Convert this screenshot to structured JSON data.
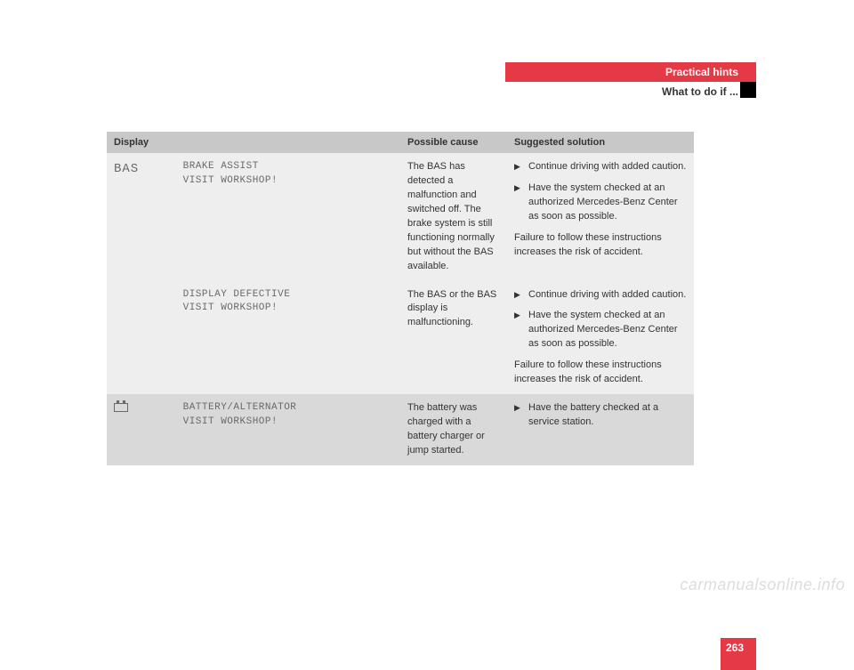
{
  "header": {
    "section_title": "Practical hints",
    "sub_title": "What to do if ..."
  },
  "table": {
    "columns": [
      "Display",
      "",
      "Possible cause",
      "Suggested solution"
    ],
    "rows": [
      {
        "shade": "light",
        "symbol": "BAS",
        "symbol_is_icon": false,
        "message_l1": "BRAKE ASSIST",
        "message_l2": "VISIT WORKSHOP!",
        "cause": "The BAS has detected a malfunction and switched off. The brake system is still functioning normally but without the BAS available.",
        "solutions": [
          "Continue driving with added caution.",
          "Have the system checked at an authorized Mercedes-Benz Center as soon as possible."
        ],
        "note": "Failure to follow these instructions increases the risk of accident."
      },
      {
        "shade": "light",
        "symbol": "",
        "symbol_is_icon": false,
        "message_l1": "DISPLAY DEFECTIVE",
        "message_l2": "VISIT WORKSHOP!",
        "cause": "The BAS or the BAS display is malfunctioning.",
        "solutions": [
          "Continue driving with added caution.",
          "Have the system checked at an authorized Mercedes-Benz Center as soon as possible."
        ],
        "note": "Failure to follow these instructions increases the risk of accident."
      },
      {
        "shade": "dark",
        "symbol": "battery",
        "symbol_is_icon": true,
        "message_l1": "BATTERY/ALTERNATOR",
        "message_l2": "VISIT WORKSHOP!",
        "cause": "The battery was charged with a battery charger or jump started.",
        "solutions": [
          "Have the battery checked at a service station."
        ],
        "note": ""
      }
    ]
  },
  "page_number": "263",
  "watermark": "carmanualsonline.info",
  "colors": {
    "accent": "#e63946",
    "header_grey": "#c8c8c8",
    "row_light": "#eeeeee",
    "row_dark": "#d9d9d9"
  }
}
